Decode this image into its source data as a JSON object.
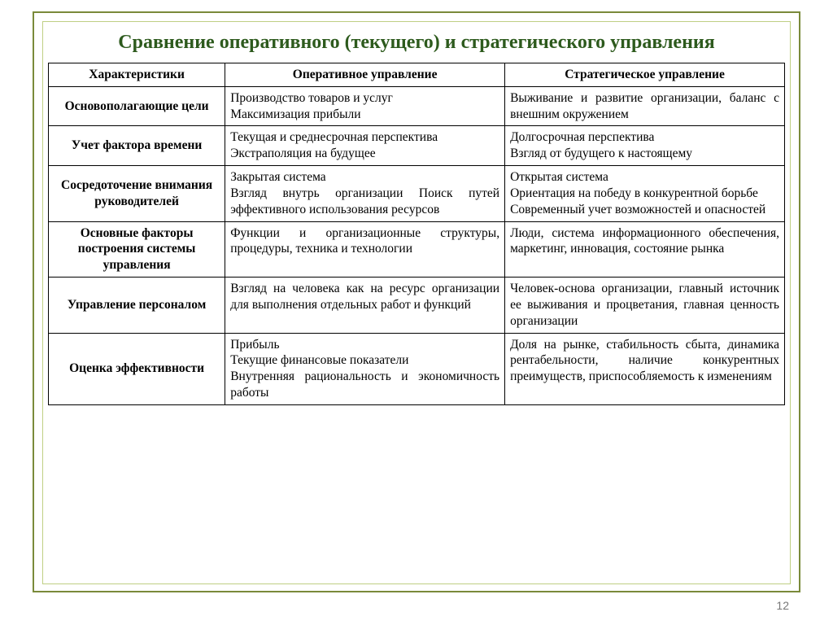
{
  "title": "Сравнение оперативного (текущего) и стратегического управления",
  "page_number": "12",
  "table": {
    "columns": [
      "Характеристики",
      "Оперативное управление",
      "Стратегическое управление"
    ],
    "rows": [
      {
        "label": "Основополагающие цели",
        "op_lines": [
          "Производство товаров и услуг",
          "Максимизация прибыли"
        ],
        "op_justify": [
          false,
          false
        ],
        "st_lines": [
          "Выживание и развитие организации, баланс с внешним окружением"
        ],
        "st_justify": [
          true
        ]
      },
      {
        "label": "Учет фактора времени",
        "op_lines": [
          "Текущая и среднесрочная перспектива",
          "Экстраполяция на будущее"
        ],
        "op_justify": [
          true,
          false
        ],
        "st_lines": [
          "Долгосрочная перспектива",
          "Взгляд от будущего к настоящему"
        ],
        "st_justify": [
          false,
          true
        ]
      },
      {
        "label": "Сосредоточение внимания руководителей",
        "op_lines": [
          "Закрытая система",
          "Взгляд внутрь организации Поиск путей эффективного использования ресурсов"
        ],
        "op_justify": [
          false,
          true
        ],
        "st_lines": [
          "Открытая система",
          "Ориентация на победу в конкурентной борьбе",
          "Современный учет возможностей и опасностей"
        ],
        "st_justify": [
          false,
          true,
          true
        ]
      },
      {
        "label": "Основные факторы построения системы управления",
        "op_lines": [
          "Функции и организационные структуры, процедуры, техника и технологии"
        ],
        "op_justify": [
          true
        ],
        "st_lines": [
          "Люди, система информационного обеспечения, маркетинг, инновация, состояние рынка"
        ],
        "st_justify": [
          true
        ]
      },
      {
        "label": "Управление персоналом",
        "op_lines": [
          "Взгляд на человека как на ресурс организации для выполнения отдельных работ и функций"
        ],
        "op_justify": [
          true
        ],
        "st_lines": [
          "Человек-основа организации, главный источник ее выживания и процветания, главная ценность организации"
        ],
        "st_justify": [
          true
        ]
      },
      {
        "label": "Оценка эффективности",
        "op_lines": [
          "Прибыль",
          "Текущие финансовые показатели",
          "Внутренняя рациональность и экономичность работы"
        ],
        "op_justify": [
          false,
          false,
          true
        ],
        "st_lines": [
          "Доля на рынке, стабильность сбыта, динамика рентабельности, наличие конкурентных преимуществ, приспособляемость к изменениям"
        ],
        "st_justify": [
          true
        ]
      }
    ]
  },
  "colors": {
    "title_color": "#2d5a1d",
    "outer_border": "#7a8a3a",
    "inner_border": "#bfcf84",
    "cell_border": "#000000",
    "background": "#ffffff",
    "page_num": "#777777"
  }
}
